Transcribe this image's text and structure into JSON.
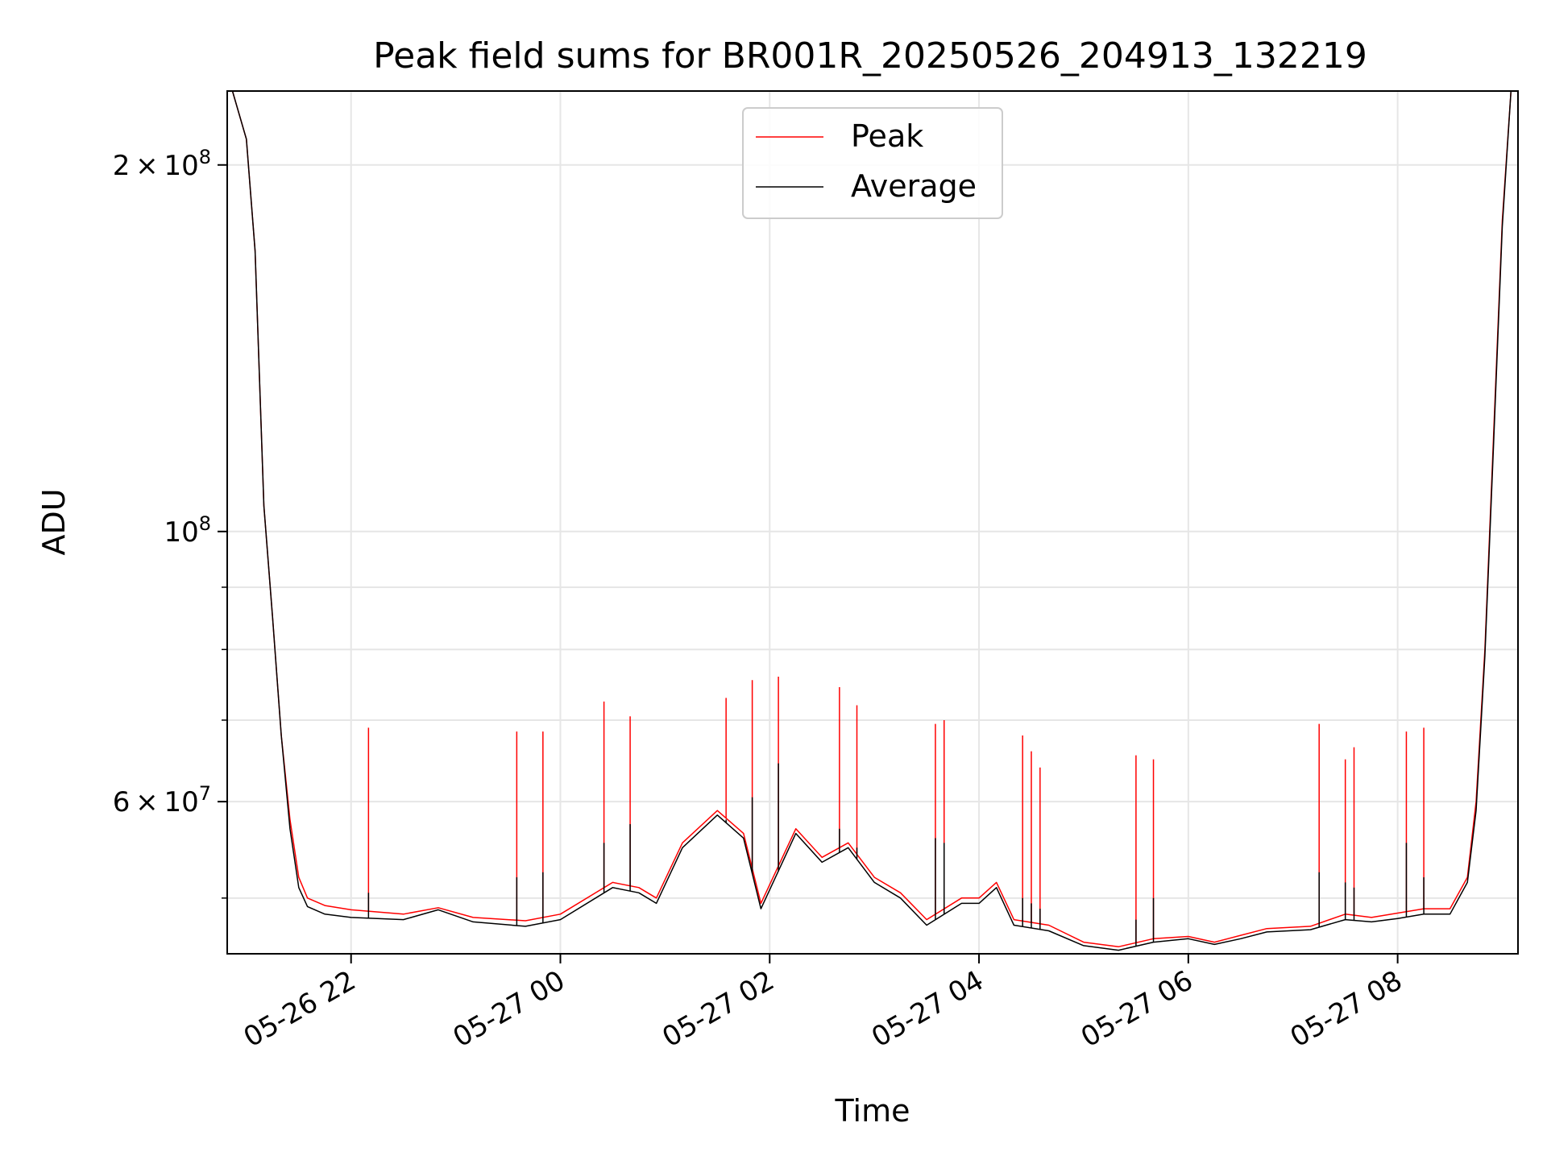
{
  "chart_data": {
    "type": "line",
    "title": "Peak field sums for BR001R_20250526_204913_132219",
    "xlabel": "Time",
    "ylabel": "ADU",
    "x_axis": {
      "type": "datetime",
      "range": [
        "05-26 20:49",
        "05-27 09:09"
      ],
      "ticks": [
        "05-26 22",
        "05-27 00",
        "05-27 02",
        "05-27 04",
        "05-27 06",
        "05-27 08"
      ]
    },
    "y_axis": {
      "scale": "log",
      "range": [
        45000000,
        230000000
      ],
      "major_ticks": [
        {
          "value": 200000000,
          "mantissa": "2",
          "times": "×",
          "base": "10",
          "exp": "8"
        },
        {
          "value": 100000000,
          "mantissa": "",
          "times": "",
          "base": "10",
          "exp": "8"
        },
        {
          "value": 60000000,
          "mantissa": "6",
          "times": "×",
          "base": "10",
          "exp": "7"
        }
      ],
      "minor_ticks": [
        50000000,
        70000000,
        80000000,
        90000000
      ]
    },
    "grid": true,
    "legend": {
      "position": "top-center",
      "entries": [
        "Peak",
        "Average"
      ]
    },
    "series": [
      {
        "name": "Peak",
        "color": "#ff0000",
        "points": [
          [
            "05-26 20:52",
            230000000
          ],
          [
            "05-26 21:00",
            210000000
          ],
          [
            "05-26 21:05",
            170000000
          ],
          [
            "05-26 21:10",
            105000000
          ],
          [
            "05-26 21:15",
            85000000
          ],
          [
            "05-26 21:20",
            68000000
          ],
          [
            "05-26 21:25",
            58000000
          ],
          [
            "05-26 21:30",
            52000000
          ],
          [
            "05-26 21:35",
            50000000
          ],
          [
            "05-26 21:45",
            49300000
          ],
          [
            "05-26 22:00",
            48900000
          ],
          [
            "05-26 22:30",
            48500000
          ],
          [
            "05-26 22:50",
            49100000
          ],
          [
            "05-26 23:10",
            48200000
          ],
          [
            "05-26 23:40",
            47900000
          ],
          [
            "05-27 00:00",
            48500000
          ],
          [
            "05-27 00:30",
            51500000
          ],
          [
            "05-27 00:45",
            51000000
          ],
          [
            "05-27 00:55",
            50000000
          ],
          [
            "05-27 01:10",
            55500000
          ],
          [
            "05-27 01:30",
            59000000
          ],
          [
            "05-27 01:45",
            56500000
          ],
          [
            "05-27 01:55",
            49500000
          ],
          [
            "05-27 02:15",
            57000000
          ],
          [
            "05-27 02:30",
            54000000
          ],
          [
            "05-27 02:45",
            55500000
          ],
          [
            "05-27 03:00",
            52000000
          ],
          [
            "05-27 03:15",
            50500000
          ],
          [
            "05-27 03:30",
            48000000
          ],
          [
            "05-27 03:50",
            50000000
          ],
          [
            "05-27 04:00",
            50000000
          ],
          [
            "05-27 04:10",
            51500000
          ],
          [
            "05-27 04:20",
            48000000
          ],
          [
            "05-27 04:40",
            47500000
          ],
          [
            "05-27 05:00",
            46000000
          ],
          [
            "05-27 05:20",
            45600000
          ],
          [
            "05-27 05:40",
            46300000
          ],
          [
            "05-27 06:00",
            46500000
          ],
          [
            "05-27 06:15",
            46000000
          ],
          [
            "05-27 06:30",
            46600000
          ],
          [
            "05-27 06:45",
            47200000
          ],
          [
            "05-27 07:10",
            47400000
          ],
          [
            "05-27 07:30",
            48500000
          ],
          [
            "05-27 07:45",
            48200000
          ],
          [
            "05-27 08:00",
            48600000
          ],
          [
            "05-27 08:15",
            49000000
          ],
          [
            "05-27 08:30",
            49000000
          ],
          [
            "05-27 08:40",
            52000000
          ],
          [
            "05-27 08:45",
            60000000
          ],
          [
            "05-27 08:50",
            80000000
          ],
          [
            "05-27 08:55",
            120000000
          ],
          [
            "05-27 09:00",
            180000000
          ],
          [
            "05-27 09:05",
            230000000
          ]
        ],
        "spikes": [
          [
            "05-26 22:10",
            69000000
          ],
          [
            "05-26 23:35",
            68500000
          ],
          [
            "05-26 23:50",
            68500000
          ],
          [
            "05-27 00:25",
            72500000
          ],
          [
            "05-27 00:40",
            70500000
          ],
          [
            "05-27 01:35",
            73000000
          ],
          [
            "05-27 01:50",
            75500000
          ],
          [
            "05-27 02:05",
            76000000
          ],
          [
            "05-27 02:40",
            74500000
          ],
          [
            "05-27 02:50",
            72000000
          ],
          [
            "05-27 03:35",
            69500000
          ],
          [
            "05-27 03:40",
            70000000
          ],
          [
            "05-27 04:25",
            68000000
          ],
          [
            "05-27 04:30",
            66000000
          ],
          [
            "05-27 04:35",
            64000000
          ],
          [
            "05-27 05:30",
            65500000
          ],
          [
            "05-27 05:40",
            65000000
          ],
          [
            "05-27 07:15",
            69500000
          ],
          [
            "05-27 07:30",
            65000000
          ],
          [
            "05-27 07:35",
            66500000
          ],
          [
            "05-27 08:05",
            68500000
          ],
          [
            "05-27 08:15",
            69000000
          ]
        ]
      },
      {
        "name": "Average",
        "color": "#000000",
        "points": [
          [
            "05-26 20:52",
            230000000
          ],
          [
            "05-26 21:00",
            210000000
          ],
          [
            "05-26 21:05",
            170000000
          ],
          [
            "05-26 21:10",
            105000000
          ],
          [
            "05-26 21:15",
            85000000
          ],
          [
            "05-26 21:20",
            68000000
          ],
          [
            "05-26 21:25",
            57000000
          ],
          [
            "05-26 21:30",
            51000000
          ],
          [
            "05-26 21:35",
            49200000
          ],
          [
            "05-26 21:45",
            48500000
          ],
          [
            "05-26 22:00",
            48200000
          ],
          [
            "05-26 22:30",
            48000000
          ],
          [
            "05-26 22:50",
            48900000
          ],
          [
            "05-26 23:10",
            47800000
          ],
          [
            "05-26 23:40",
            47400000
          ],
          [
            "05-27 00:00",
            48000000
          ],
          [
            "05-27 00:30",
            51000000
          ],
          [
            "05-27 00:45",
            50500000
          ],
          [
            "05-27 00:55",
            49500000
          ],
          [
            "05-27 01:10",
            55000000
          ],
          [
            "05-27 01:30",
            58500000
          ],
          [
            "05-27 01:45",
            56000000
          ],
          [
            "05-27 01:55",
            49000000
          ],
          [
            "05-27 02:15",
            56500000
          ],
          [
            "05-27 02:30",
            53500000
          ],
          [
            "05-27 02:45",
            55000000
          ],
          [
            "05-27 03:00",
            51500000
          ],
          [
            "05-27 03:15",
            50000000
          ],
          [
            "05-27 03:30",
            47500000
          ],
          [
            "05-27 03:50",
            49500000
          ],
          [
            "05-27 04:00",
            49500000
          ],
          [
            "05-27 04:10",
            51000000
          ],
          [
            "05-27 04:20",
            47500000
          ],
          [
            "05-27 04:40",
            47000000
          ],
          [
            "05-27 05:00",
            45700000
          ],
          [
            "05-27 05:20",
            45300000
          ],
          [
            "05-27 05:40",
            46000000
          ],
          [
            "05-27 06:00",
            46300000
          ],
          [
            "05-27 06:15",
            45800000
          ],
          [
            "05-27 06:30",
            46300000
          ],
          [
            "05-27 06:45",
            46900000
          ],
          [
            "05-27 07:10",
            47100000
          ],
          [
            "05-27 07:30",
            48000000
          ],
          [
            "05-27 07:45",
            47800000
          ],
          [
            "05-27 08:00",
            48100000
          ],
          [
            "05-27 08:15",
            48500000
          ],
          [
            "05-27 08:30",
            48500000
          ],
          [
            "05-27 08:40",
            51500000
          ],
          [
            "05-27 08:45",
            59000000
          ],
          [
            "05-27 08:50",
            79000000
          ],
          [
            "05-27 08:55",
            118000000
          ],
          [
            "05-27 09:00",
            178000000
          ],
          [
            "05-27 09:05",
            230000000
          ]
        ],
        "spikes": [
          [
            "05-26 22:10",
            50500000
          ],
          [
            "05-26 23:35",
            52000000
          ],
          [
            "05-26 23:50",
            52500000
          ],
          [
            "05-27 00:25",
            55500000
          ],
          [
            "05-27 00:40",
            57500000
          ],
          [
            "05-27 01:35",
            58000000
          ],
          [
            "05-27 01:50",
            60500000
          ],
          [
            "05-27 02:05",
            64500000
          ],
          [
            "05-27 02:40",
            57000000
          ],
          [
            "05-27 02:50",
            55000000
          ],
          [
            "05-27 03:35",
            56000000
          ],
          [
            "05-27 03:40",
            55500000
          ],
          [
            "05-27 04:25",
            50000000
          ],
          [
            "05-27 04:30",
            49500000
          ],
          [
            "05-27 04:35",
            49000000
          ],
          [
            "05-27 05:30",
            48000000
          ],
          [
            "05-27 05:40",
            50000000
          ],
          [
            "05-27 07:15",
            52500000
          ],
          [
            "05-27 07:30",
            51500000
          ],
          [
            "05-27 07:35",
            51000000
          ],
          [
            "05-27 08:05",
            55500000
          ],
          [
            "05-27 08:15",
            52000000
          ]
        ]
      }
    ]
  }
}
